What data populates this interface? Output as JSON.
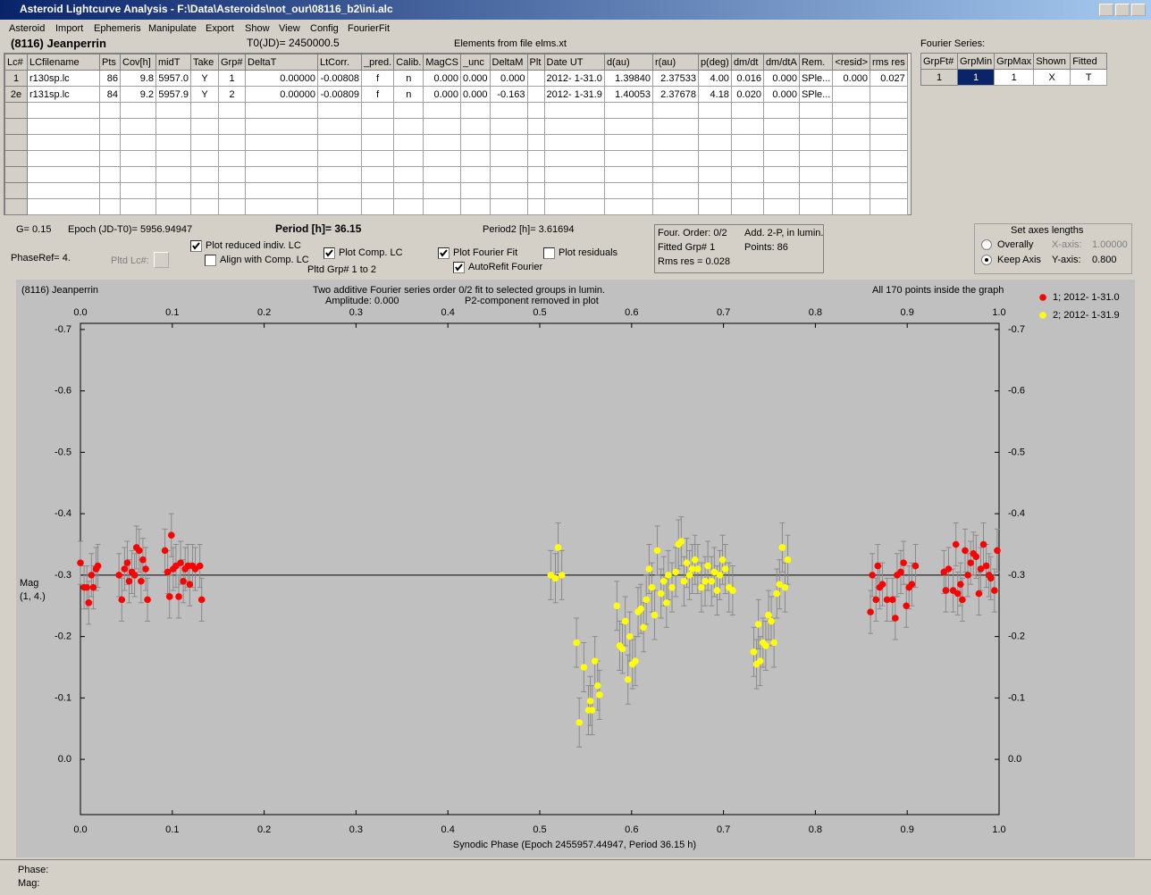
{
  "window": {
    "title": "Asteroid Lightcurve Analysis - F:\\Data\\Asteroids\\not_our\\08116_b2\\ini.alc"
  },
  "menu": [
    "Asteroid",
    "Import",
    "Ephemeris",
    "Manipulate",
    "Export",
    "Show",
    "View",
    "Config",
    "FourierFit"
  ],
  "header": {
    "asteroid": "(8116) Jeanperrin",
    "t0": "T0(JD)= 2450000.5",
    "elements": "Elements from file elms.xt",
    "fourier_label": "Fourier Series:"
  },
  "lc_table": {
    "columns": [
      "Lc#",
      "LCfilename",
      "Pts",
      "Cov[h]",
      "midT",
      "Take",
      "Grp#",
      "DeltaT",
      "LtCorr.",
      "_pred.",
      "Calib.",
      "MagCS",
      "_unc",
      "DeltaM",
      "Plt",
      "Date UT",
      "d(au)",
      "r(au)",
      "p(deg)",
      "dm/dt",
      "dm/dtA",
      "Rem.",
      "<resid>",
      "rms res"
    ],
    "rows": [
      [
        "1",
        "r130sp.lc",
        "86",
        "9.8",
        "5957.0",
        "Y",
        "1",
        "0.00000",
        "-0.00808",
        "f",
        "n",
        "0.000",
        "0.000",
        "0.000",
        null,
        "2012- 1-31.0",
        "1.39840",
        "2.37533",
        "4.00",
        "0.016",
        "0.000",
        "SPle...",
        "0.000",
        "0.027"
      ],
      [
        "2e",
        "r131sp.lc",
        "84",
        "9.2",
        "5957.9",
        "Y",
        "2",
        "0.00000",
        "-0.00809",
        "f",
        "n",
        "0.000",
        "0.000",
        "-0.163",
        null,
        "2012- 1-31.9",
        "1.40053",
        "2.37678",
        "4.18",
        "0.020",
        "0.000",
        "SPle...",
        null,
        null
      ]
    ]
  },
  "fourier_table": {
    "columns": [
      "GrpFt#",
      "GrpMin",
      "GrpMax",
      "Shown",
      "Fitted"
    ],
    "rows": [
      [
        "1",
        "1",
        "1",
        "X",
        "T"
      ]
    ]
  },
  "info": {
    "g": "G= 0.15",
    "epoch": "Epoch (JD-T0)= 5956.94947",
    "period": "Period [h]= 36.15",
    "period2": "Period2 [h]= 3.61694",
    "phaseref": "PhaseRef= 4.",
    "pltd_lc": "Pltd Lc#:",
    "pltd_grp": "Pltd Grp#  1   to   2"
  },
  "checkboxes": [
    {
      "label": "Plot reduced indiv. LC",
      "checked": true
    },
    {
      "label": "Align with Comp. LC",
      "checked": false
    },
    {
      "label": "Plot Comp. LC",
      "checked": true
    },
    {
      "label": "Plot Fourier Fit",
      "checked": true
    },
    {
      "label": "Plot residuals",
      "checked": false
    },
    {
      "label": "AutoRefit Fourier",
      "checked": true
    }
  ],
  "fit_box": {
    "order": "Four. Order:  0/2",
    "add": "Add. 2-P, in lumin.",
    "fitted": "Fitted Grp# 1",
    "points": "Points: 86",
    "rms": "Rms res      = 0.028"
  },
  "axes_box": {
    "title": "Set axes lengths",
    "radios": [
      {
        "label": "Overally",
        "checked": false
      },
      {
        "label": "Keep Axis",
        "checked": true
      }
    ],
    "x_label": "X-axis:",
    "x_value": "1.00000",
    "y_label": "Y-axis:",
    "y_value": "0.800"
  },
  "footer": {
    "phase": "Phase:",
    "mag": "Mag:"
  },
  "chart_data": {
    "type": "scatter",
    "corner_label": "(8116) Jeanperrin",
    "title": "Two additive Fourier series order 0/2 fit to selected groups in lumin.",
    "subtitle": "Amplitude: 0.000",
    "note": "P2-component removed in plot",
    "info": "All 170 points inside the graph",
    "ylabel": "Mag",
    "ylabel_sub": "(1, 4.)",
    "xlabel": "Synodic Phase (Epoch 2455957.44947, Period 36.15 h)",
    "xlim": [
      0,
      1
    ],
    "xticks": [
      {
        "value": 0,
        "label": "0.0"
      },
      0.1,
      0.2,
      0.3,
      0.4,
      0.5,
      0.6,
      0.7,
      0.8,
      0.9,
      {
        "value": 1,
        "label": "1.0"
      }
    ],
    "ylim": [
      0.09,
      -0.71
    ],
    "yticks": [
      -0.7,
      -0.6,
      -0.5,
      -0.4,
      -0.3,
      -0.2,
      -0.1,
      {
        "value": 0,
        "label": "0.0"
      }
    ],
    "grid": false,
    "legend": "upper right",
    "fit_line": -0.3,
    "fit_color": "#000000",
    "error_color": "#8a8a8a",
    "series": [
      {
        "name": "1; 2012- 1-31.0",
        "color": "#ff0000",
        "error": 0.035,
        "x": [
          0.0,
          0.004,
          0.007,
          0.009,
          0.012,
          0.014,
          0.017,
          0.019,
          0.042,
          0.045,
          0.048,
          0.051,
          0.053,
          0.056,
          0.059,
          0.061,
          0.064,
          0.066,
          0.068,
          0.071,
          0.073,
          0.092,
          0.095,
          0.097,
          0.099,
          0.101,
          0.104,
          0.107,
          0.109,
          0.112,
          0.114,
          0.117,
          0.119,
          0.122,
          0.125,
          0.13,
          0.132,
          0.86,
          0.862,
          0.866,
          0.868,
          0.87,
          0.873,
          0.878,
          0.884,
          0.887,
          0.889,
          0.893,
          0.896,
          0.899,
          0.902,
          0.905,
          0.909,
          0.94,
          0.942,
          0.945,
          0.95,
          0.953,
          0.955,
          0.958,
          0.96,
          0.963,
          0.966,
          0.969,
          0.972,
          0.975,
          0.978,
          0.98,
          0.983,
          0.986,
          0.989,
          0.991,
          0.995,
          0.998
        ],
        "values": [
          -0.32,
          -0.28,
          -0.28,
          -0.255,
          -0.3,
          -0.28,
          -0.31,
          -0.315,
          -0.3,
          -0.26,
          -0.31,
          -0.32,
          -0.29,
          -0.305,
          -0.3,
          -0.345,
          -0.34,
          -0.29,
          -0.325,
          -0.31,
          -0.26,
          -0.34,
          -0.305,
          -0.265,
          -0.365,
          -0.31,
          -0.315,
          -0.265,
          -0.32,
          -0.29,
          -0.31,
          -0.315,
          -0.285,
          -0.315,
          -0.31,
          -0.315,
          -0.26,
          -0.24,
          -0.3,
          -0.26,
          -0.315,
          -0.28,
          -0.285,
          -0.26,
          -0.26,
          -0.23,
          -0.3,
          -0.305,
          -0.32,
          -0.25,
          -0.28,
          -0.285,
          -0.315,
          -0.305,
          -0.275,
          -0.31,
          -0.275,
          -0.35,
          -0.27,
          -0.285,
          -0.26,
          -0.34,
          -0.3,
          -0.32,
          -0.335,
          -0.33,
          -0.27,
          -0.31,
          -0.35,
          -0.315,
          -0.3,
          -0.295,
          -0.275,
          -0.34
        ]
      },
      {
        "name": "2; 2012- 1-31.9",
        "color": "#ffff00",
        "error": 0.04,
        "x": [
          0.512,
          0.517,
          0.52,
          0.524,
          0.54,
          0.543,
          0.548,
          0.553,
          0.555,
          0.557,
          0.56,
          0.563,
          0.565,
          0.584,
          0.587,
          0.59,
          0.593,
          0.596,
          0.598,
          0.601,
          0.604,
          0.607,
          0.61,
          0.613,
          0.616,
          0.619,
          0.622,
          0.625,
          0.628,
          0.632,
          0.635,
          0.638,
          0.64,
          0.644,
          0.648,
          0.651,
          0.654,
          0.657,
          0.66,
          0.663,
          0.666,
          0.669,
          0.672,
          0.676,
          0.68,
          0.683,
          0.687,
          0.69,
          0.693,
          0.696,
          0.699,
          0.702,
          0.706,
          0.71,
          0.733,
          0.736,
          0.738,
          0.74,
          0.743,
          0.746,
          0.749,
          0.752,
          0.755,
          0.758,
          0.761,
          0.764,
          0.767,
          0.77
        ],
        "values": [
          -0.3,
          -0.295,
          -0.345,
          -0.3,
          -0.19,
          -0.06,
          -0.15,
          -0.08,
          -0.095,
          -0.08,
          -0.16,
          -0.12,
          -0.105,
          -0.25,
          -0.185,
          -0.18,
          -0.225,
          -0.13,
          -0.2,
          -0.155,
          -0.16,
          -0.24,
          -0.245,
          -0.215,
          -0.26,
          -0.31,
          -0.28,
          -0.235,
          -0.34,
          -0.27,
          -0.29,
          -0.255,
          -0.3,
          -0.28,
          -0.305,
          -0.35,
          -0.355,
          -0.29,
          -0.32,
          -0.3,
          -0.31,
          -0.325,
          -0.31,
          -0.28,
          -0.29,
          -0.315,
          -0.29,
          -0.305,
          -0.275,
          -0.3,
          -0.325,
          -0.31,
          -0.28,
          -0.275,
          -0.175,
          -0.155,
          -0.22,
          -0.16,
          -0.19,
          -0.185,
          -0.235,
          -0.225,
          -0.19,
          -0.27,
          -0.285,
          -0.345,
          -0.28,
          -0.325
        ]
      }
    ]
  }
}
